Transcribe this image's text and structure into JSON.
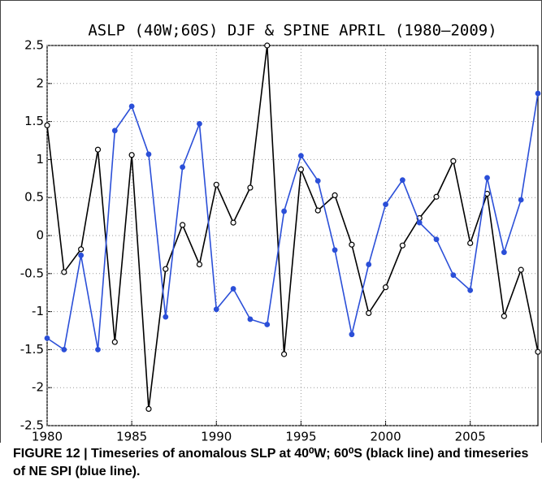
{
  "chart_data": {
    "type": "line",
    "title": "ASLP (40W;60S)  DJF  & SPINE APRIL (1980–2009)",
    "caption": "FIGURE 12 | Timeseries of anomalous SLP at 40⁰W; 60⁰S (black line) and timeseries of NE SPI (blue line).",
    "x": [
      1980,
      1981,
      1982,
      1983,
      1984,
      1985,
      1986,
      1987,
      1988,
      1989,
      1990,
      1991,
      1992,
      1993,
      1994,
      1995,
      1996,
      1997,
      1998,
      1999,
      2000,
      2001,
      2002,
      2003,
      2004,
      2005,
      2006,
      2007,
      2008,
      2009
    ],
    "series": [
      {
        "color": "#000000",
        "marker": "open",
        "values": [
          1.45,
          -0.48,
          -0.18,
          1.13,
          -1.4,
          1.06,
          -2.28,
          -0.44,
          0.14,
          -0.38,
          0.67,
          0.17,
          0.63,
          2.5,
          -1.56,
          0.87,
          0.33,
          0.53,
          -0.12,
          -1.02,
          -0.68,
          -0.13,
          0.23,
          0.51,
          0.98,
          -0.1,
          0.55,
          -1.06,
          -0.45,
          -1.53
        ]
      },
      {
        "color": "#2b4fd8",
        "marker": "filled",
        "values": [
          -1.35,
          -1.5,
          -0.26,
          -1.5,
          1.38,
          1.7,
          1.07,
          -1.07,
          0.9,
          1.47,
          -0.97,
          -0.7,
          -1.1,
          -1.17,
          0.32,
          1.05,
          0.72,
          -0.19,
          -1.3,
          -0.38,
          0.41,
          0.73,
          0.17,
          -0.05,
          -0.52,
          -0.72,
          0.76,
          -0.22,
          0.47,
          1.87
        ]
      }
    ],
    "xlim": [
      1980,
      2009
    ],
    "xticks": [
      1980,
      1985,
      1990,
      1995,
      2000,
      2005
    ],
    "ylim": [
      -2.5,
      2.5
    ],
    "yticks": [
      -2.5,
      -2,
      -1.5,
      -1,
      -0.5,
      0,
      0.5,
      1,
      1.5,
      2,
      2.5
    ],
    "grid": true
  }
}
